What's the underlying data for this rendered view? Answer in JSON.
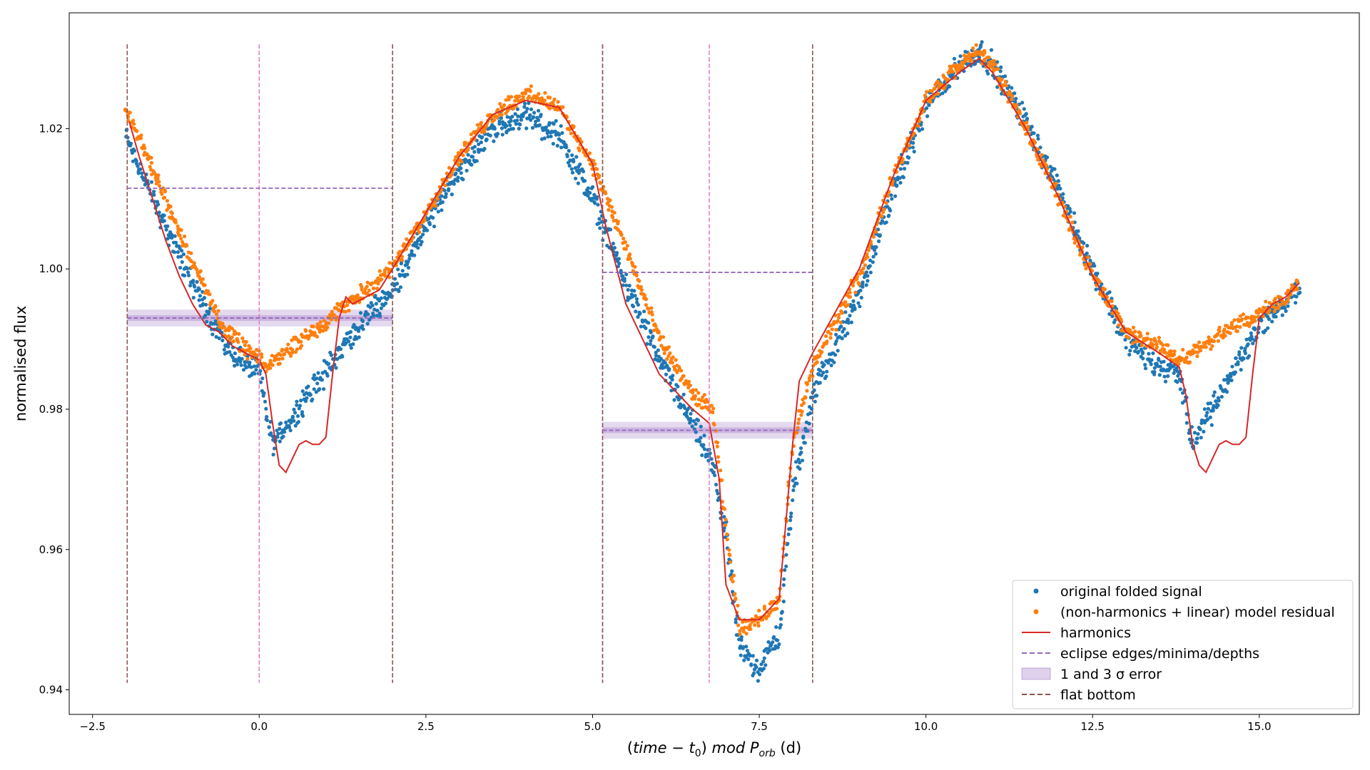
{
  "chart_data": {
    "type": "scatter",
    "xlabel": "(time − t0) mod Porb (d)",
    "xlabel_parts": {
      "open": "(",
      "time": "time",
      "minus": " − ",
      "t": "t",
      "sub0": "0",
      "close": ")",
      "mod": "mod",
      "P": "P",
      "orb": "orb",
      "unit": "(d)"
    },
    "ylabel": "normalised flux",
    "xlim": [
      -2.85,
      16.5
    ],
    "ylim": [
      0.9365,
      1.0365
    ],
    "xticks": [
      -2.5,
      0.0,
      2.5,
      5.0,
      7.5,
      10.0,
      12.5,
      15.0
    ],
    "xtick_labels": [
      "−2.5",
      "0.0",
      "2.5",
      "5.0",
      "7.5",
      "10.0",
      "12.5",
      "15.0"
    ],
    "yticks": [
      0.94,
      0.96,
      0.98,
      1.0,
      1.02
    ],
    "ytick_labels": [
      "0.94",
      "0.96",
      "0.98",
      "1.00",
      "1.02"
    ],
    "colors": {
      "original": "#1f77b4",
      "residual": "#ff7f0e",
      "harmonics": "#d62728",
      "eclipse": "#9467bd",
      "flat": "#8c564b",
      "minima": "#e377c2"
    },
    "series": [
      {
        "name": "harmonics",
        "x": [
          -1.95,
          -1.8,
          -1.6,
          -1.4,
          -1.2,
          -1.0,
          -0.8,
          -0.6,
          -0.4,
          -0.2,
          0.0,
          0.1,
          0.2,
          0.3,
          0.4,
          0.5,
          0.6,
          0.7,
          0.8,
          0.9,
          1.0,
          1.1,
          1.2,
          1.3,
          1.4,
          1.6,
          1.8,
          2.0,
          2.5,
          3.0,
          3.5,
          4.0,
          4.5,
          5.0,
          5.2,
          5.5,
          6.0,
          6.5,
          6.75,
          6.9,
          7.0,
          7.2,
          7.5,
          7.8,
          8.0,
          8.1,
          8.2,
          8.3,
          9.0,
          9.5,
          10.0,
          10.5,
          10.8,
          11.0,
          11.5,
          12.0,
          12.5,
          13.0,
          13.5,
          13.8,
          13.9,
          14.0,
          14.1,
          14.2,
          14.3,
          14.4,
          14.5,
          14.6,
          14.7,
          14.8,
          14.9,
          15.0,
          15.2,
          15.4,
          15.6
        ],
        "y": [
          1.021,
          1.016,
          1.01,
          1.004,
          0.999,
          0.995,
          0.992,
          0.991,
          0.989,
          0.988,
          0.987,
          0.985,
          0.978,
          0.972,
          0.971,
          0.973,
          0.975,
          0.9755,
          0.975,
          0.975,
          0.976,
          0.985,
          0.993,
          0.996,
          0.995,
          0.996,
          0.997,
          1.0,
          1.008,
          1.016,
          1.022,
          1.024,
          1.023,
          1.015,
          1.006,
          0.995,
          0.985,
          0.98,
          0.978,
          0.97,
          0.955,
          0.95,
          0.95,
          0.953,
          0.975,
          0.984,
          0.986,
          0.988,
          1.0,
          1.013,
          1.024,
          1.028,
          1.03,
          1.028,
          1.02,
          1.01,
          0.999,
          0.991,
          0.988,
          0.986,
          0.982,
          0.975,
          0.972,
          0.971,
          0.973,
          0.975,
          0.9755,
          0.975,
          0.975,
          0.976,
          0.985,
          0.993,
          0.995,
          0.996,
          0.998
        ]
      },
      {
        "name": "original folded signal",
        "x": [
          -2.0,
          -1.5,
          -1.0,
          -0.5,
          0.0,
          0.1,
          0.2,
          1.5,
          2.0,
          2.5,
          3.0,
          3.5,
          4.0,
          4.5,
          5.0,
          5.5,
          6.0,
          6.5,
          6.8,
          7.0,
          7.2,
          7.5,
          7.8,
          8.0,
          8.3,
          9.0,
          9.5,
          10.0,
          10.5,
          10.8,
          11.0,
          11.5,
          12.0,
          12.5,
          13.0,
          13.5,
          13.8,
          14.0,
          15.0,
          15.6
        ],
        "y": [
          1.019,
          1.008,
          0.998,
          0.989,
          0.985,
          0.98,
          0.975,
          0.992,
          0.997,
          1.006,
          1.014,
          1.02,
          1.022,
          1.019,
          1.01,
          0.998,
          0.987,
          0.978,
          0.972,
          0.962,
          0.946,
          0.943,
          0.948,
          0.968,
          0.982,
          0.996,
          1.011,
          1.023,
          1.029,
          1.031,
          1.029,
          1.021,
          1.011,
          1.0,
          0.99,
          0.986,
          0.985,
          0.975,
          0.992,
          0.997
        ]
      },
      {
        "name": "(non-harmonics + linear) model residual",
        "x": [
          -2.0,
          -1.5,
          -1.0,
          -0.5,
          0.0,
          0.1,
          1.6,
          2.0,
          2.5,
          3.0,
          3.5,
          4.0,
          4.5,
          5.0,
          5.5,
          6.0,
          6.5,
          6.8,
          7.0,
          7.2,
          7.5,
          7.8,
          8.0,
          8.3,
          9.0,
          9.5,
          10.0,
          10.5,
          10.8,
          11.0,
          11.5,
          12.0,
          12.5,
          13.0,
          13.5,
          13.8,
          15.4,
          15.6
        ],
        "y": [
          1.023,
          1.012,
          1.001,
          0.991,
          0.987,
          0.986,
          0.997,
          1.0,
          1.008,
          1.016,
          1.022,
          1.025,
          1.023,
          1.015,
          1.003,
          0.99,
          0.982,
          0.98,
          0.963,
          0.949,
          0.95,
          0.953,
          0.975,
          0.986,
          0.999,
          1.013,
          1.024,
          1.029,
          1.031,
          1.029,
          1.02,
          1.01,
          0.999,
          0.991,
          0.989,
          0.987,
          0.996,
          0.998
        ]
      }
    ],
    "eclipse_edges": [
      -1.98,
      2.0,
      5.15,
      8.3
    ],
    "minima": [
      0.0,
      6.75
    ],
    "flat_bottom": [
      -1.98,
      2.0,
      5.15,
      8.3
    ],
    "vlines_y_range": [
      0.941,
      1.032
    ],
    "eclipse_levels": [
      {
        "x": [
          -1.98,
          2.0
        ],
        "y": 1.0115
      },
      {
        "x": [
          5.15,
          8.3
        ],
        "y": 0.9995
      }
    ],
    "depth_levels": [
      {
        "x": [
          -1.98,
          2.0
        ],
        "y": 0.993,
        "err1": 0.0004,
        "err3": 0.0012
      },
      {
        "x": [
          5.15,
          8.3
        ],
        "y": 0.977,
        "err1": 0.0004,
        "err3": 0.0012
      }
    ],
    "legend": {
      "position": "lower-right",
      "entries": [
        {
          "label": "original folded signal",
          "kind": "scatter",
          "color_key": "original"
        },
        {
          "label": "(non-harmonics + linear) model residual",
          "kind": "scatter",
          "color_key": "residual"
        },
        {
          "label": "harmonics",
          "kind": "line",
          "color_key": "harmonics"
        },
        {
          "label": "eclipse edges/minima/depths",
          "kind": "dashed",
          "color_key": "eclipse"
        },
        {
          "label": "1 and 3 σ error",
          "kind": "patch",
          "color_key": "eclipse"
        },
        {
          "label": "flat bottom",
          "kind": "dashed",
          "color_key": "flat"
        }
      ]
    }
  }
}
